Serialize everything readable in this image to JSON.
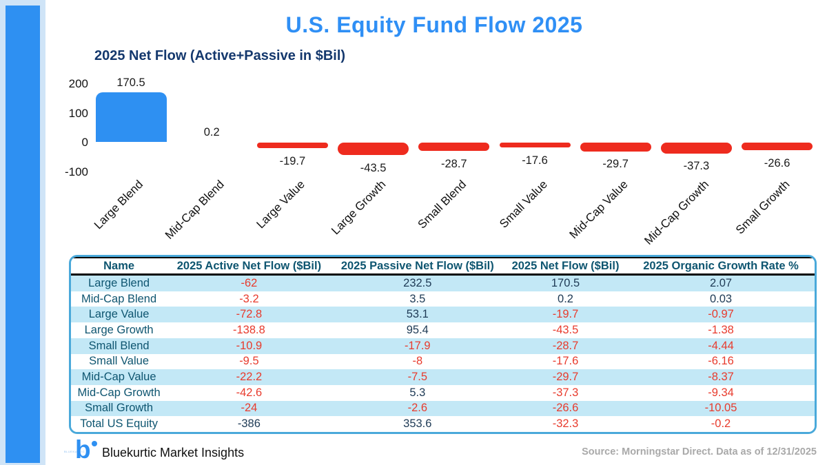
{
  "page": {
    "title": "U.S. Equity Fund Flow 2025"
  },
  "colors": {
    "accent_blue": "#2e90f2",
    "bar_negative_red": "#ee2b1e",
    "text_red": "#e83b2d",
    "text_navy": "#1e3a55",
    "text_teal": "#0e5570",
    "row_light_blue": "#c3e8f6",
    "table_border_blue": "#4aa9da",
    "title_blue": "#2f8ff5",
    "subtitle_navy": "#14386d",
    "source_gray": "#a9a9a9"
  },
  "chart_data": {
    "type": "bar",
    "title": "2025 Net Flow (Active+Passive in $Bil)",
    "categories": [
      "Large Blend",
      "Mid-Cap Blend",
      "Large Value",
      "Large Growth",
      "Small Blend",
      "Small Value",
      "Mid-Cap Value",
      "Mid-Cap Growth",
      "Small Growth"
    ],
    "values": [
      170.5,
      0.2,
      -19.7,
      -43.5,
      -28.7,
      -17.6,
      -29.7,
      -37.3,
      -26.6
    ],
    "value_labels": [
      "170.5",
      "0.2",
      "-19.7",
      "-43.5",
      "-28.7",
      "-17.6",
      "-29.7",
      "-37.3",
      "-26.6"
    ],
    "yticks": [
      200,
      100,
      0,
      -100
    ],
    "ylim": [
      -100,
      230
    ],
    "grid": false,
    "legend": "none",
    "xlabel": "",
    "ylabel": "",
    "positive_color": "#2e90f2",
    "negative_color": "#ee2b1e"
  },
  "table": {
    "columns": [
      "Name",
      "2025 Active Net Flow ($Bil)",
      "2025 Passive Net Flow ($Bil)",
      "2025 Net Flow ($Bil)",
      "2025 Organic Growth Rate %"
    ],
    "rows": [
      {
        "name": "Large Blend",
        "cells": [
          {
            "t": "-62",
            "red": true
          },
          {
            "t": "232.5",
            "red": false
          },
          {
            "t": "170.5",
            "red": false
          },
          {
            "t": "2.07",
            "red": false
          }
        ]
      },
      {
        "name": "Mid-Cap Blend",
        "cells": [
          {
            "t": "-3.2",
            "red": true
          },
          {
            "t": "3.5",
            "red": false
          },
          {
            "t": "0.2",
            "red": false
          },
          {
            "t": "0.03",
            "red": false
          }
        ]
      },
      {
        "name": "Large Value",
        "cells": [
          {
            "t": "-72.8",
            "red": true
          },
          {
            "t": "53.1",
            "red": false
          },
          {
            "t": "-19.7",
            "red": true
          },
          {
            "t": "-0.97",
            "red": true
          }
        ]
      },
      {
        "name": "Large Growth",
        "cells": [
          {
            "t": "-138.8",
            "red": true
          },
          {
            "t": "95.4",
            "red": false
          },
          {
            "t": "-43.5",
            "red": true
          },
          {
            "t": "-1.38",
            "red": true
          }
        ]
      },
      {
        "name": "Small Blend",
        "cells": [
          {
            "t": "-10.9",
            "red": true
          },
          {
            "t": "-17.9",
            "red": true
          },
          {
            "t": "-28.7",
            "red": true
          },
          {
            "t": "-4.44",
            "red": true
          }
        ]
      },
      {
        "name": "Small Value",
        "cells": [
          {
            "t": "-9.5",
            "red": true
          },
          {
            "t": "-8",
            "red": true
          },
          {
            "t": "-17.6",
            "red": true
          },
          {
            "t": "-6.16",
            "red": true
          }
        ]
      },
      {
        "name": "Mid-Cap Value",
        "cells": [
          {
            "t": "-22.2",
            "red": true
          },
          {
            "t": "-7.5",
            "red": true
          },
          {
            "t": "-29.7",
            "red": true
          },
          {
            "t": "-8.37",
            "red": true
          }
        ]
      },
      {
        "name": "Mid-Cap Growth",
        "cells": [
          {
            "t": "-42.6",
            "red": true
          },
          {
            "t": "5.3",
            "red": false
          },
          {
            "t": "-37.3",
            "red": true
          },
          {
            "t": "-9.34",
            "red": true
          }
        ]
      },
      {
        "name": "Small Growth",
        "cells": [
          {
            "t": "-24",
            "red": true
          },
          {
            "t": "-2.6",
            "red": true
          },
          {
            "t": "-26.6",
            "red": true
          },
          {
            "t": "-10.05",
            "red": true
          }
        ]
      },
      {
        "name": "Total US Equity",
        "cells": [
          {
            "t": "-386",
            "red": false
          },
          {
            "t": "353.6",
            "red": false
          },
          {
            "t": "-32.3",
            "red": true
          },
          {
            "t": "-0.2",
            "red": true
          }
        ]
      }
    ]
  },
  "footer": {
    "brand": "Bluekurtic Market Insights",
    "logo_letter": "b",
    "logo_microtext": "BLUEKURTIC",
    "source": "Source: Morningstar Direct. Data as of 12/31/2025"
  }
}
